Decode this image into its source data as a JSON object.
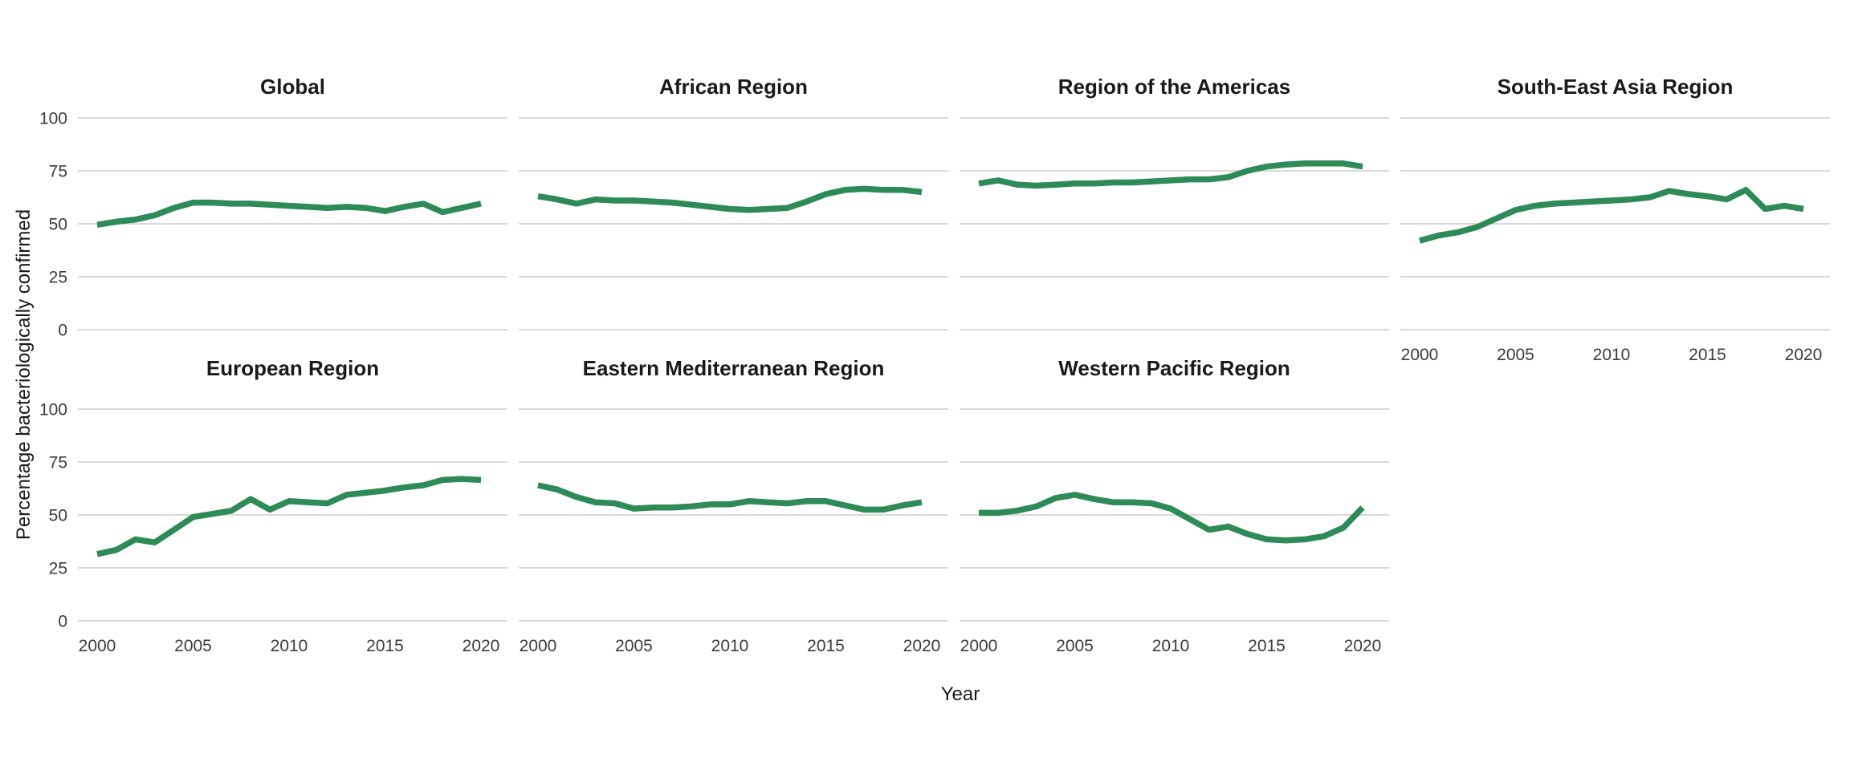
{
  "chart_data": {
    "type": "line",
    "xlabel": "Year",
    "ylabel": "Percentage bacteriologically confirmed",
    "x": [
      2000,
      2001,
      2002,
      2003,
      2004,
      2005,
      2006,
      2007,
      2008,
      2009,
      2010,
      2011,
      2012,
      2013,
      2014,
      2015,
      2016,
      2017,
      2018,
      2019,
      2020
    ],
    "x_ticks": [
      2000,
      2005,
      2010,
      2015,
      2020
    ],
    "y_ticks": [
      0,
      25,
      50,
      75,
      100
    ],
    "ylim": [
      0,
      100
    ],
    "grid": true,
    "legend": false,
    "line_color": "#2e8b57",
    "grid_color": "#d9d9d9",
    "tick_label_color": "#3c3c3c",
    "title_color": "#1a1a1a",
    "facet_layout": {
      "rows": 2,
      "cols": 4,
      "row1": [
        "Global",
        "African Region",
        "Region of the Americas",
        "South-East Asia Region"
      ],
      "row2": [
        "European Region",
        "Eastern Mediterranean Region",
        "Western Pacific Region"
      ]
    },
    "series": [
      {
        "name": "Global",
        "slug": "global",
        "values": [
          49.5,
          51,
          52,
          54,
          57.5,
          60,
          60,
          59.5,
          59.5,
          59,
          58.5,
          58,
          57.5,
          58,
          57.5,
          56,
          58,
          59.5,
          55.5,
          57.5,
          59.5
        ]
      },
      {
        "name": "African Region",
        "slug": "african-region",
        "values": [
          63,
          61.5,
          59.5,
          61.5,
          61,
          61,
          60.5,
          60,
          59,
          58,
          57,
          56.5,
          57,
          57.5,
          60.5,
          64,
          66,
          66.5,
          66,
          66,
          65
        ]
      },
      {
        "name": "Region of the Americas",
        "slug": "region-of-the-americas",
        "values": [
          69,
          70.5,
          68.5,
          68,
          68.5,
          69,
          69,
          69.5,
          69.5,
          70,
          70.5,
          71,
          71,
          72,
          75,
          77,
          78,
          78.5,
          78.5,
          78.5,
          77
        ]
      },
      {
        "name": "South-East Asia Region",
        "slug": "south-east-asia-region",
        "values": [
          42,
          44.5,
          46,
          48.5,
          52.5,
          56.5,
          58.5,
          59.5,
          60,
          60.5,
          61,
          61.5,
          62.5,
          65.5,
          64,
          63,
          61.5,
          66,
          57,
          58.5,
          57
        ]
      },
      {
        "name": "European Region",
        "slug": "european-region",
        "values": [
          31.5,
          33.5,
          38.5,
          37,
          43,
          49,
          50.5,
          52,
          57.5,
          52.5,
          56.5,
          56,
          55.5,
          59.5,
          60.5,
          61.5,
          63,
          64,
          66.5,
          67,
          66.5
        ]
      },
      {
        "name": "Eastern Mediterranean Region",
        "slug": "eastern-mediterranean-region",
        "values": [
          64,
          62,
          58.5,
          56,
          55.5,
          53,
          53.5,
          53.5,
          54,
          55,
          55,
          56.5,
          56,
          55.5,
          56.5,
          56.5,
          54.5,
          52.5,
          52.5,
          54.5,
          56
        ]
      },
      {
        "name": "Western Pacific Region",
        "slug": "western-pacific-region",
        "values": [
          51,
          51,
          52,
          54,
          58,
          59.5,
          57.5,
          56,
          56,
          55.5,
          53,
          48,
          43,
          44.5,
          41,
          38.5,
          38,
          38.5,
          40,
          44,
          53.5
        ]
      }
    ]
  }
}
